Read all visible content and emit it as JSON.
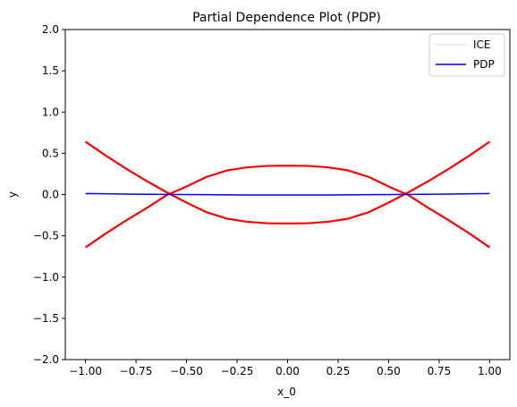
{
  "chart_data": {
    "type": "line",
    "title": "Partial Dependence Plot (PDP)",
    "xlabel": "x_0",
    "ylabel": "y",
    "xlim": [
      -1.1,
      1.1
    ],
    "ylim": [
      -2.0,
      2.0
    ],
    "xticks": [
      -1.0,
      -0.75,
      -0.5,
      -0.25,
      0.0,
      0.25,
      0.5,
      0.75,
      1.0
    ],
    "xtick_labels": [
      "−1.00",
      "−0.75",
      "−0.50",
      "−0.25",
      "0.00",
      "0.25",
      "0.50",
      "0.75",
      "1.00"
    ],
    "yticks": [
      -2.0,
      -1.5,
      -1.0,
      -0.5,
      0.0,
      0.5,
      1.0,
      1.5,
      2.0
    ],
    "ytick_labels": [
      "−2.0",
      "−1.5",
      "−1.0",
      "−0.5",
      "0.0",
      "0.5",
      "1.0",
      "1.5",
      "2.0"
    ],
    "grid": false,
    "legend_position": "top-right",
    "series": [
      {
        "name": "ICE",
        "color": "#ff0000",
        "legend_color": "#ffc0c0",
        "curves": [
          {
            "x": [
              -1.0,
              -0.9,
              -0.8,
              -0.7,
              -0.6,
              -0.5,
              -0.4,
              -0.3,
              -0.2,
              -0.1,
              0.0,
              0.1,
              0.2,
              0.3,
              0.4,
              0.5,
              0.6,
              0.7,
              0.8,
              0.9,
              1.0
            ],
            "y": [
              0.64,
              0.4725,
              0.315,
              0.1675,
              0.03,
              -0.0975,
              -0.215,
              -0.2925,
              -0.33,
              -0.3475,
              -0.35,
              -0.3475,
              -0.33,
              -0.2925,
              -0.215,
              -0.0975,
              0.03,
              0.1675,
              0.315,
              0.4725,
              0.64
            ]
          },
          {
            "x": [
              -1.0,
              -0.9,
              -0.8,
              -0.7,
              -0.6,
              -0.5,
              -0.4,
              -0.3,
              -0.2,
              -0.1,
              0.0,
              0.1,
              0.2,
              0.3,
              0.4,
              0.5,
              0.6,
              0.7,
              0.8,
              0.9,
              1.0
            ],
            "y": [
              -0.64,
              -0.4725,
              -0.315,
              -0.1675,
              -0.01,
              0.0975,
              0.215,
              0.2925,
              0.33,
              0.3475,
              0.35,
              0.3475,
              0.33,
              0.2925,
              0.215,
              0.0975,
              -0.01,
              -0.1675,
              -0.315,
              -0.4725,
              -0.64
            ]
          }
        ]
      },
      {
        "name": "PDP",
        "color": "#0000ff",
        "x": [
          -1.0,
          -0.8,
          -0.6,
          -0.4,
          -0.2,
          0.0,
          0.2,
          0.4,
          0.6,
          0.8,
          1.0
        ],
        "y": [
          0.012,
          0.006,
          0.002,
          -0.002,
          -0.005,
          -0.006,
          -0.005,
          -0.002,
          0.002,
          0.006,
          0.012
        ]
      }
    ]
  }
}
